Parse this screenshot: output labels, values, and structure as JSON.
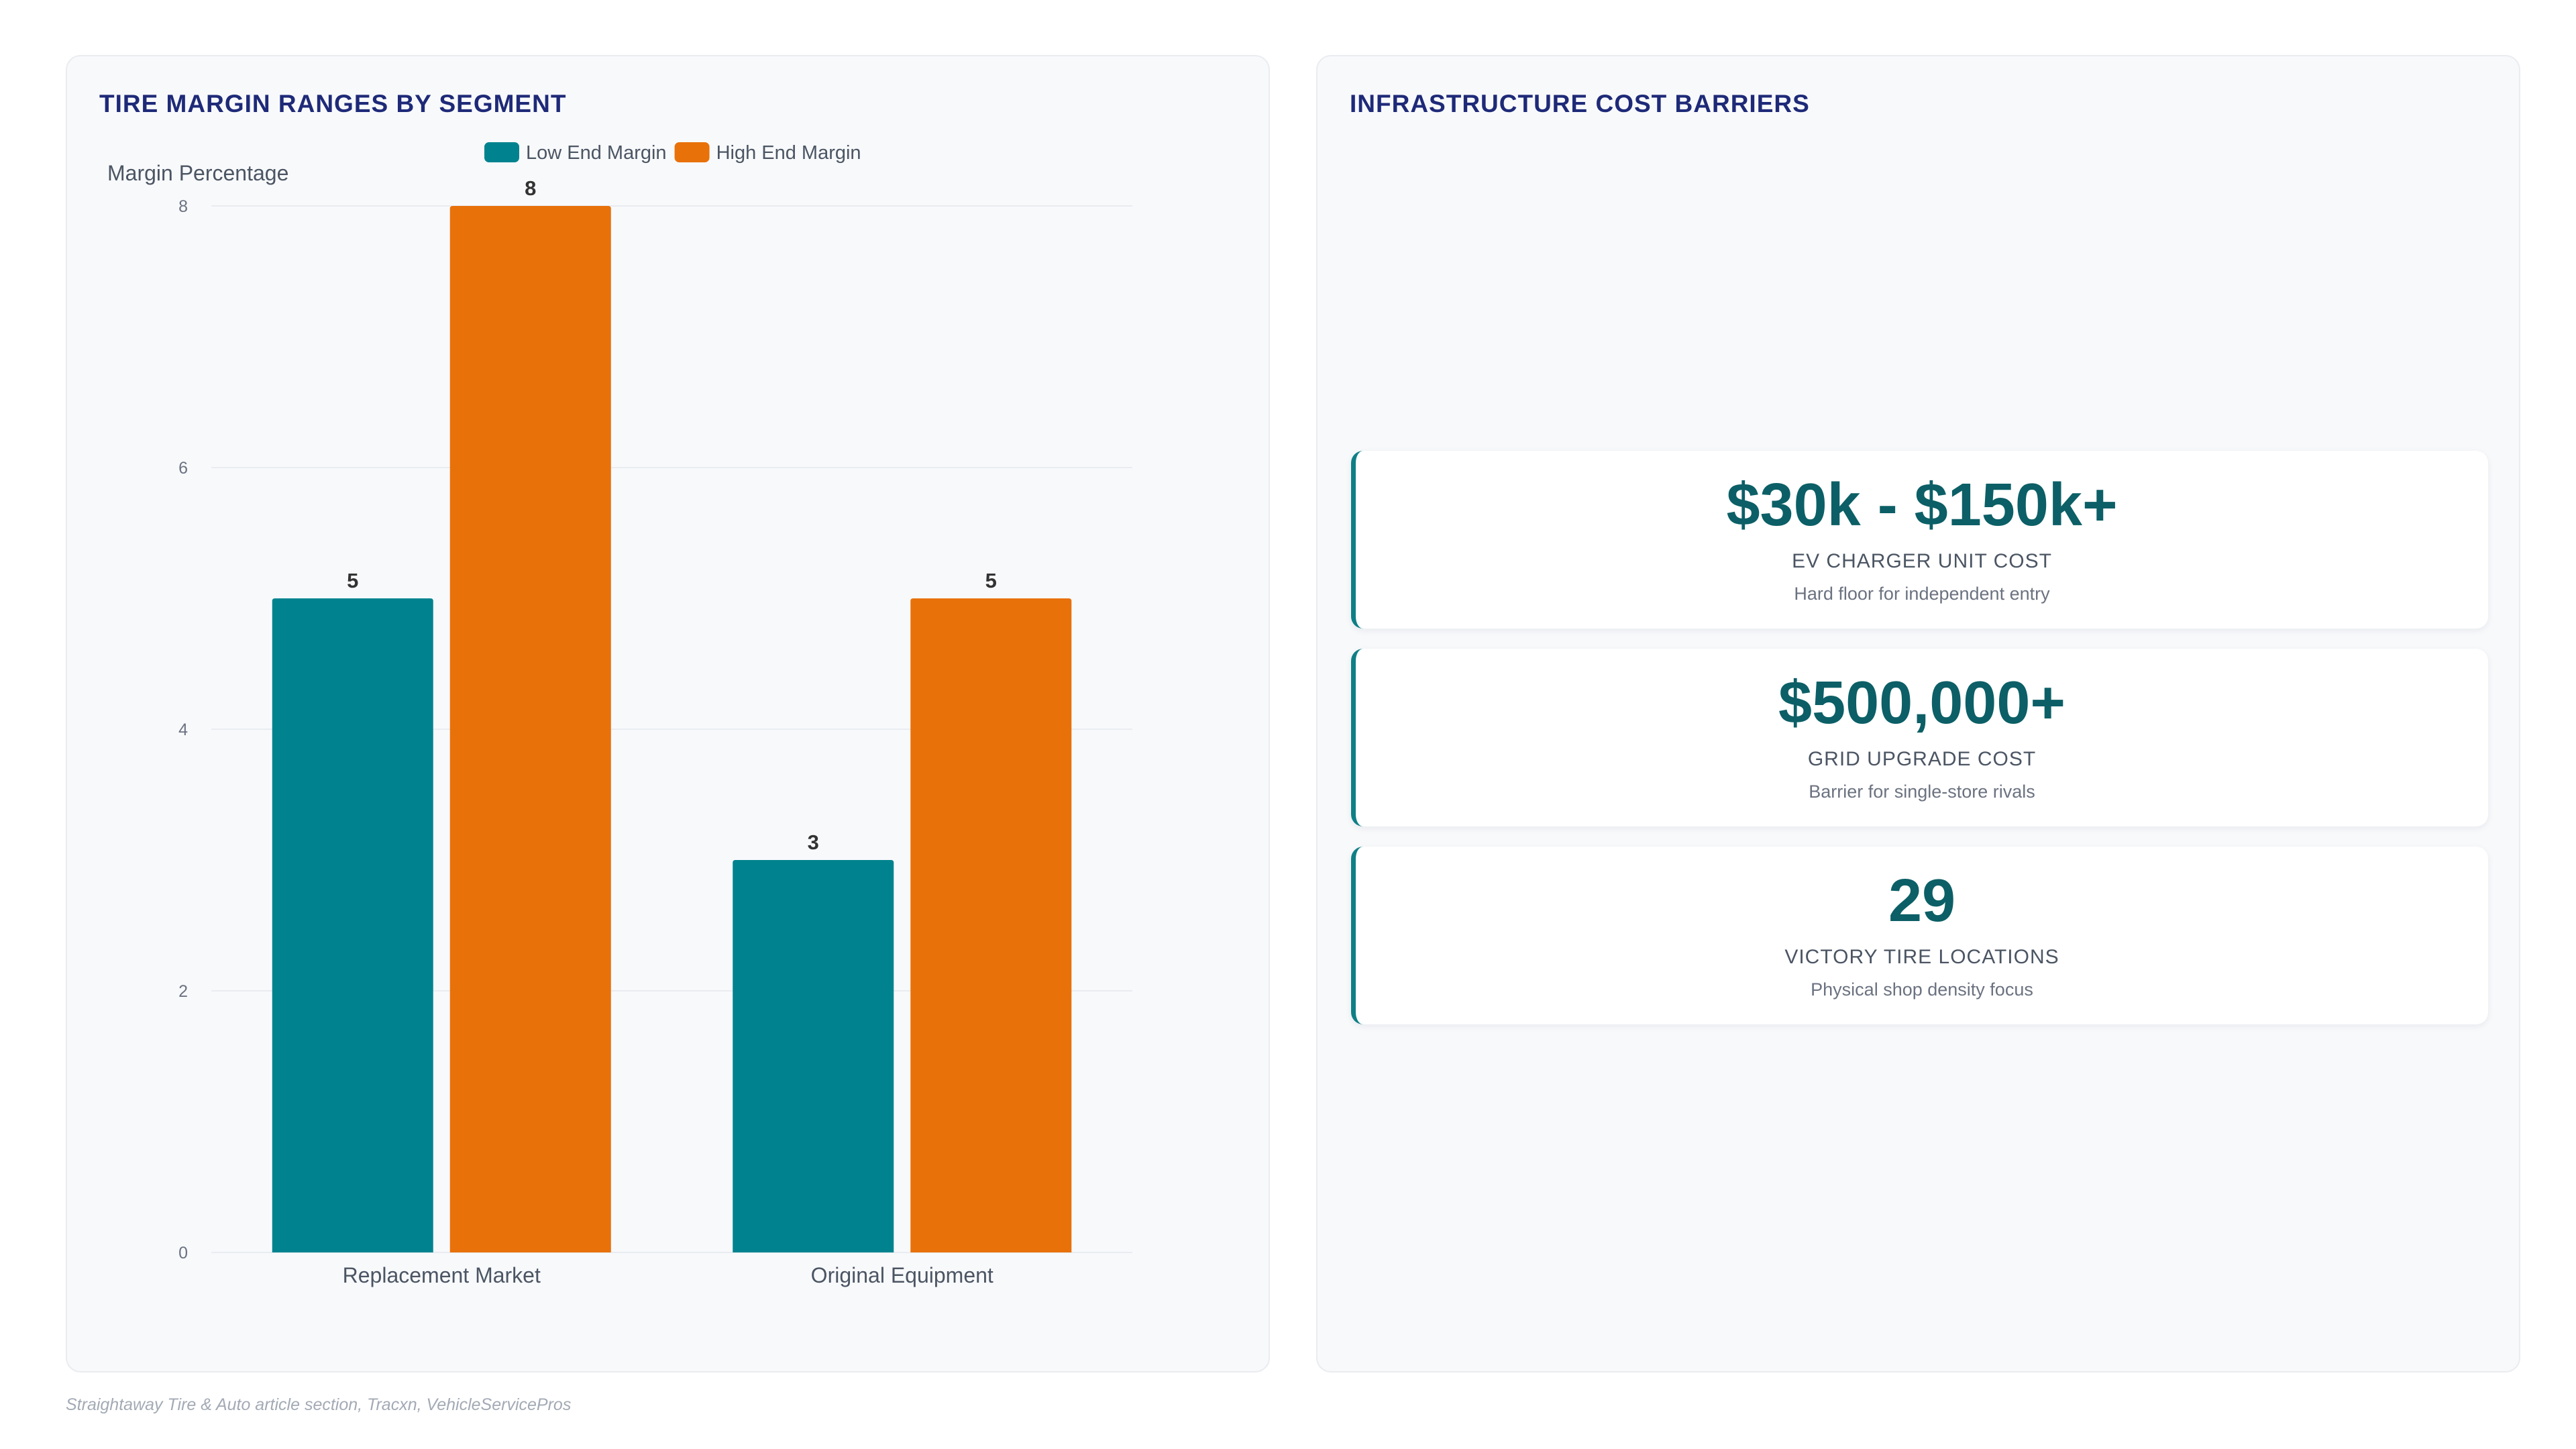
{
  "left_panel": {
    "title": "TIRE MARGIN RANGES BY SEGMENT"
  },
  "right_panel": {
    "title": "INFRASTRUCTURE COST BARRIERS",
    "stats": [
      {
        "value": "$30k - $150k+",
        "label": "EV CHARGER UNIT COST",
        "sub": "Hard floor for independent entry"
      },
      {
        "value": "$500,000+",
        "label": "GRID UPGRADE COST",
        "sub": "Barrier for single-store rivals"
      },
      {
        "value": "29",
        "label": "VICTORY TIRE LOCATIONS",
        "sub": "Physical shop density focus"
      }
    ]
  },
  "source": "Straightaway Tire & Auto article section, Tracxn, VehicleServicePros",
  "colors": {
    "teal": "#00838f",
    "orange": "#e8710a",
    "title_navy": "#1e2a78"
  },
  "chart_data": {
    "type": "bar",
    "title": "TIRE MARGIN RANGES BY SEGMENT",
    "categories": [
      "Replacement Market",
      "Original Equipment"
    ],
    "series": [
      {
        "name": "Low End Margin",
        "values": [
          5,
          3
        ],
        "color": "#00838f"
      },
      {
        "name": "High End Margin",
        "values": [
          8,
          5
        ],
        "color": "#e8710a"
      }
    ],
    "xlabel": "",
    "ylabel": "Margin Percentage",
    "ylim": [
      0,
      8
    ],
    "yticks": [
      0,
      2,
      4,
      6,
      8
    ],
    "grid": true,
    "legend": "top-center",
    "data_labels": true
  }
}
